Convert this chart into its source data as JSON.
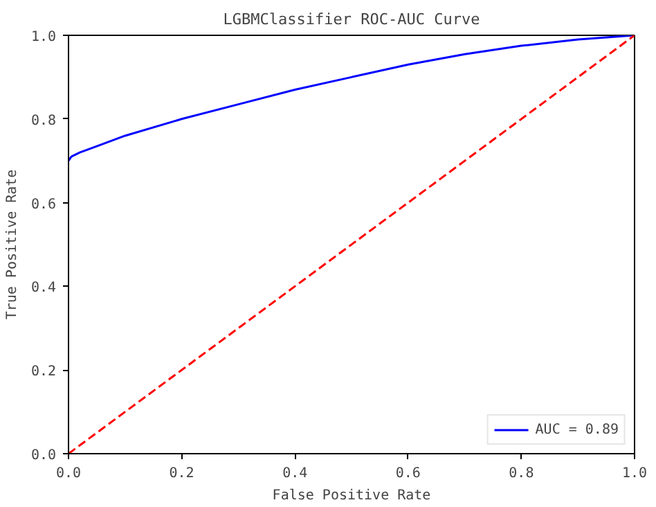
{
  "chart_data": {
    "type": "line",
    "title": "LGBMClassifier ROC-AUC Curve",
    "xlabel": "False Positive Rate",
    "ylabel": "True Positive Rate",
    "xlim": [
      0,
      1
    ],
    "ylim": [
      0,
      1
    ],
    "xticks": [
      {
        "value": 0,
        "label": "0.0"
      },
      {
        "value": 0.2,
        "label": "0.2"
      },
      {
        "value": 0.4,
        "label": "0.4"
      },
      {
        "value": 0.6,
        "label": "0.6"
      },
      {
        "value": 0.8,
        "label": "0.8"
      },
      {
        "value": 1,
        "label": "1.0"
      }
    ],
    "yticks": [
      {
        "value": 0,
        "label": "0.0"
      },
      {
        "value": 0.2,
        "label": "0.2"
      },
      {
        "value": 0.4,
        "label": "0.4"
      },
      {
        "value": 0.6,
        "label": "0.6"
      },
      {
        "value": 0.8,
        "label": "0.8"
      },
      {
        "value": 1,
        "label": "1.0"
      }
    ],
    "series": [
      {
        "name": "AUC = 0.89",
        "color": "#0000ff",
        "line_style": "solid",
        "x": [
          0,
          0.005,
          0.02,
          0.05,
          0.1,
          0.2,
          0.3,
          0.4,
          0.5,
          0.6,
          0.7,
          0.8,
          0.9,
          1.0
        ],
        "values": [
          0.7,
          0.71,
          0.72,
          0.735,
          0.76,
          0.8,
          0.835,
          0.87,
          0.9,
          0.93,
          0.955,
          0.975,
          0.99,
          1.0
        ]
      },
      {
        "color": "#ff0000",
        "line_style": "dashed",
        "x": [
          0,
          1
        ],
        "values": [
          0,
          1
        ]
      }
    ],
    "legend": "bottom right",
    "grid": false,
    "marker": "none"
  }
}
